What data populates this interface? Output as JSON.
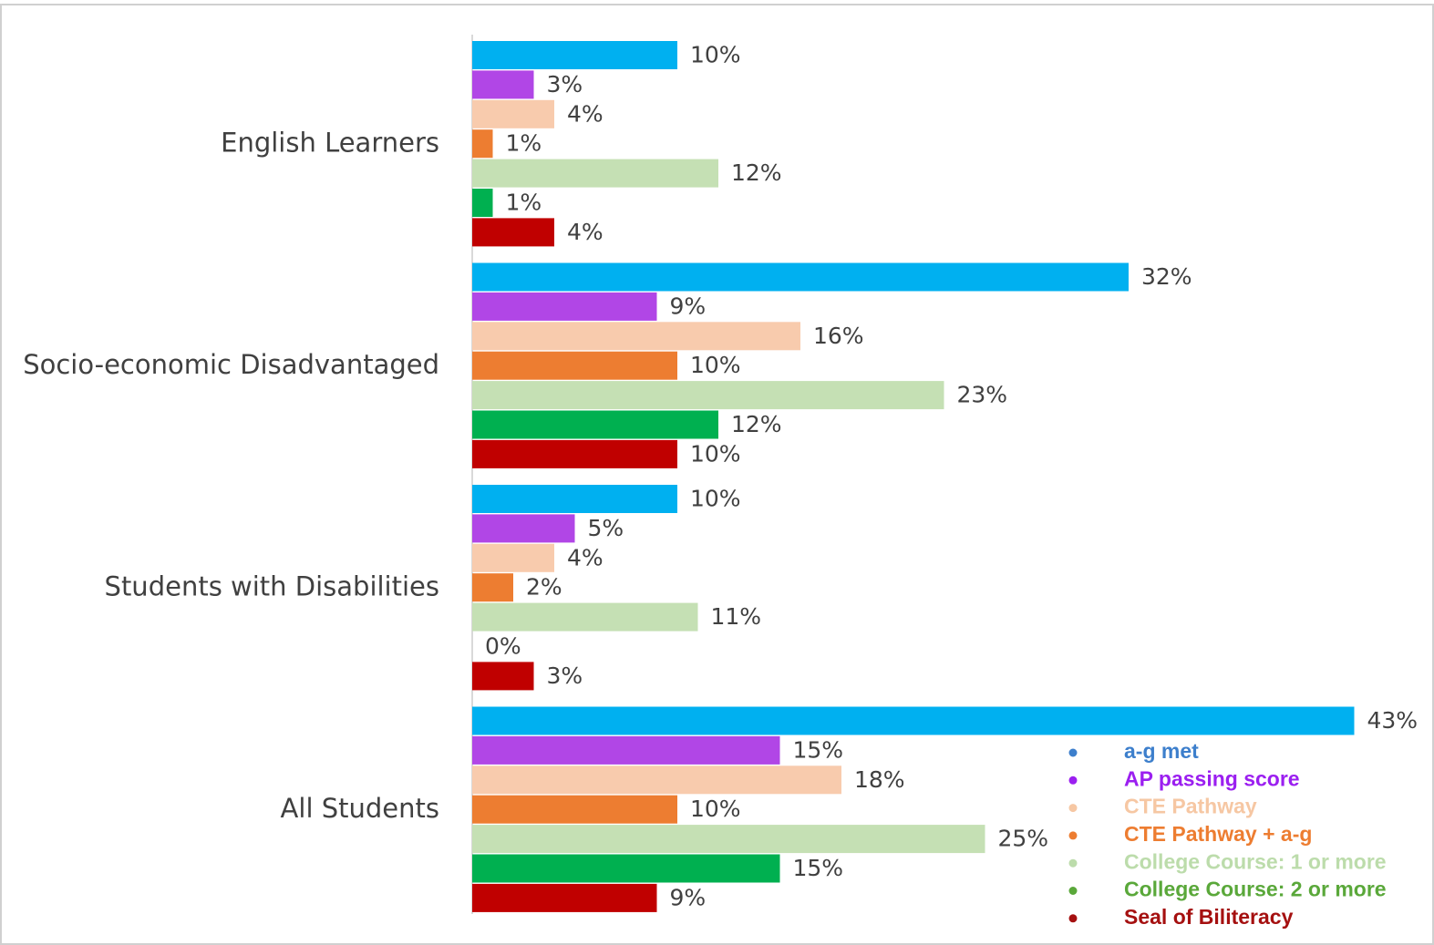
{
  "chart_data": {
    "type": "bar",
    "orientation": "horizontal",
    "categories": [
      "English Learners",
      "Socio-economic Disadvantaged",
      "Students with Disabilities",
      "All Students"
    ],
    "series": [
      {
        "name": "a-g met",
        "color": "#00b0f0",
        "legend_color": "#3d7fcc",
        "values": [
          10,
          32,
          10,
          43
        ],
        "value_labels": [
          "10%",
          "32%",
          "10%",
          "43%"
        ]
      },
      {
        "name": "AP passing score",
        "color": "#b146e6",
        "legend_color": "#9b1ff0",
        "values": [
          3,
          9,
          5,
          15
        ],
        "value_labels": [
          "3%",
          "9%",
          "5%",
          "15%"
        ]
      },
      {
        "name": "CTE Pathway",
        "color": "#f8cbad",
        "legend_color": "#f6c7a3",
        "values": [
          4,
          16,
          4,
          18
        ],
        "value_labels": [
          "4%",
          "16%",
          "4%",
          "18%"
        ]
      },
      {
        "name": "CTE Pathway + a-g",
        "color": "#ed7d31",
        "legend_color": "#ed7d31",
        "values": [
          1,
          10,
          2,
          10
        ],
        "value_labels": [
          "1%",
          "10%",
          "2%",
          "10%"
        ]
      },
      {
        "name": "College Course: 1 or more",
        "color": "#c5e0b4",
        "legend_color": "#bcdcab",
        "values": [
          12,
          23,
          11,
          25
        ],
        "value_labels": [
          "12%",
          "23%",
          "11%",
          "25%"
        ]
      },
      {
        "name": "College Course: 2 or more",
        "color": "#00b050",
        "legend_color": "#5aa83a",
        "values": [
          1,
          12,
          0,
          15
        ],
        "value_labels": [
          "1%",
          "12%",
          "0%",
          "15%"
        ]
      },
      {
        "name": "Seal of Biliteracy",
        "color": "#c00000",
        "legend_color": "#a51010",
        "values": [
          4,
          10,
          3,
          9
        ],
        "value_labels": [
          "4%",
          "10%",
          "3%",
          "9%"
        ]
      }
    ],
    "legend": "bottom-right"
  }
}
